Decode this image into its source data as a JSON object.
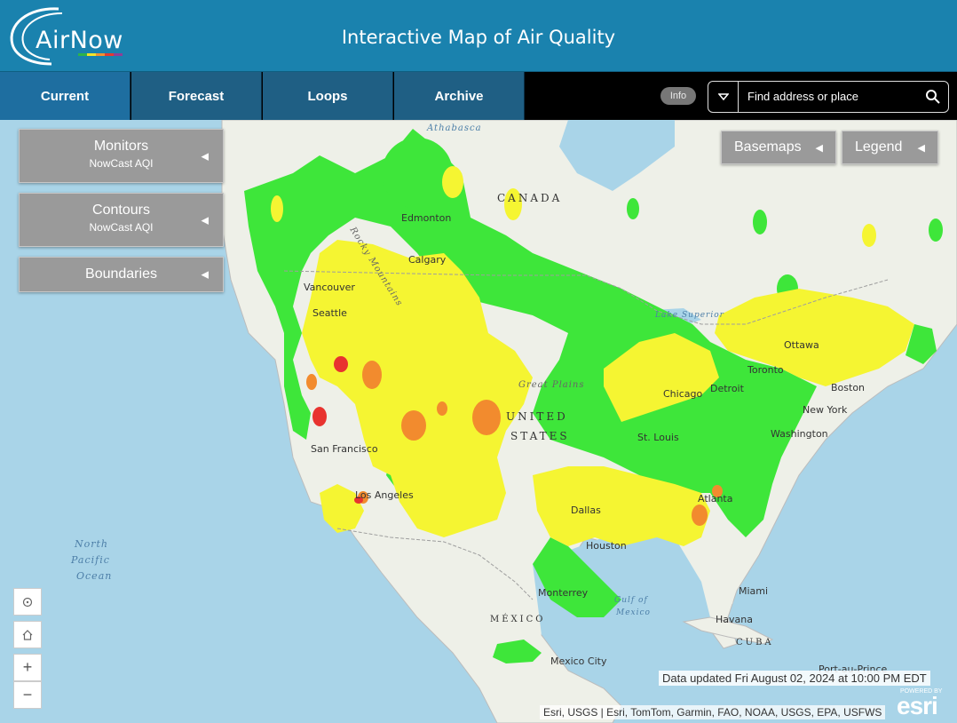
{
  "header": {
    "logo_text": "AirNow",
    "title": "Interactive Map of Air Quality"
  },
  "nav": {
    "tabs": [
      "Current",
      "Forecast",
      "Loops",
      "Archive"
    ],
    "active_tab": "Current",
    "info_label": "Info",
    "search_placeholder": "Find address or place"
  },
  "panels": {
    "monitors": {
      "title": "Monitors",
      "subtitle": "NowCast AQI"
    },
    "contours": {
      "title": "Contours",
      "subtitle": "NowCast AQI"
    },
    "boundaries": {
      "title": "Boundaries"
    }
  },
  "toolbar": {
    "basemaps_label": "Basemaps",
    "legend_label": "Legend"
  },
  "map": {
    "country_labels": [
      "CANADA",
      "UNITED",
      "STATES",
      "MÉXICO",
      "CUBA"
    ],
    "city_labels": [
      "Edmonton",
      "Calgary",
      "Vancouver",
      "Seattle",
      "San Francisco",
      "Los Angeles",
      "Dallas",
      "Houston",
      "Chicago",
      "Detroit",
      "Toronto",
      "Ottawa",
      "Boston",
      "New York",
      "Washington",
      "St. Louis",
      "Atlanta",
      "Miami",
      "Havana",
      "Monterrey",
      "Mexico City",
      "Port-au-Prince"
    ],
    "region_labels": [
      "Athabasca",
      "Rocky Mountains",
      "Great Plains",
      "Lake Superior"
    ],
    "water_labels": [
      "North",
      "Pacific",
      "Ocean",
      "Gulf of",
      "Mexico"
    ],
    "aqi_colors": {
      "good": "#3ee63a",
      "moderate": "#f5f532",
      "usg": "#f28b2e",
      "unhealthy": "#e8332f"
    }
  },
  "footer": {
    "updated_text": "Data updated Fri August 02, 2024 at 10:00 PM EDT",
    "attribution": "Esri, USGS | Esri, TomTom, Garmin, FAO, NOAA, USGS, EPA, USFWS",
    "esri_powered": "POWERED BY",
    "esri_logo": "esri"
  }
}
